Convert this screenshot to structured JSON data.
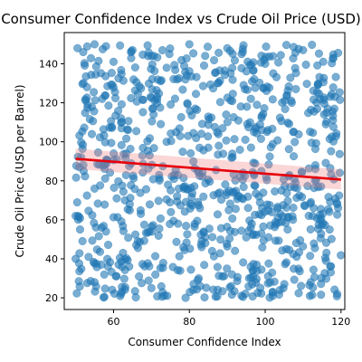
{
  "chart_data": {
    "type": "scatter",
    "title": "Consumer Confidence Index vs Crude Oil Price (USD)",
    "xlabel": "Consumer Confidence Index",
    "ylabel": "Crude Oil Price (USD per Barrel)",
    "xlim": [
      47,
      121
    ],
    "ylim": [
      14,
      156
    ],
    "xticks": [
      60,
      80,
      100,
      120
    ],
    "yticks": [
      20,
      40,
      60,
      80,
      100,
      120,
      140
    ],
    "grid": false,
    "point_color": "#1f77b4",
    "regression": {
      "color": "#e8000b",
      "band_color": "#f08080",
      "x": [
        50,
        120
      ],
      "y": [
        91.3,
        80.6
      ],
      "band_lower": [
        86.0,
        75.5
      ],
      "band_upper": [
        96.5,
        85.8
      ]
    },
    "points_seed": 12345,
    "points_count": 900,
    "points_x_range": [
      50,
      120
    ],
    "points_y_range": [
      20,
      150
    ],
    "sample_points": [
      {
        "x": 50.5,
        "y": 148
      },
      {
        "x": 52,
        "y": 146
      },
      {
        "x": 55,
        "y": 150
      },
      {
        "x": 58,
        "y": 149
      },
      {
        "x": 60,
        "y": 141
      },
      {
        "x": 65,
        "y": 147
      },
      {
        "x": 70,
        "y": 144
      },
      {
        "x": 80,
        "y": 150
      },
      {
        "x": 90,
        "y": 148
      },
      {
        "x": 100,
        "y": 140
      },
      {
        "x": 110,
        "y": 147
      },
      {
        "x": 118,
        "y": 143
      },
      {
        "x": 53,
        "y": 128
      },
      {
        "x": 57,
        "y": 122
      },
      {
        "x": 62,
        "y": 112
      },
      {
        "x": 74,
        "y": 100
      },
      {
        "x": 85,
        "y": 97
      },
      {
        "x": 96,
        "y": 110
      },
      {
        "x": 107,
        "y": 120
      },
      {
        "x": 116,
        "y": 109
      },
      {
        "x": 51,
        "y": 87
      },
      {
        "x": 55,
        "y": 76
      },
      {
        "x": 63,
        "y": 70
      },
      {
        "x": 72,
        "y": 83
      },
      {
        "x": 88,
        "y": 74
      },
      {
        "x": 99,
        "y": 85
      },
      {
        "x": 108,
        "y": 79
      },
      {
        "x": 119,
        "y": 68
      },
      {
        "x": 50,
        "y": 62
      },
      {
        "x": 58,
        "y": 54
      },
      {
        "x": 66,
        "y": 47
      },
      {
        "x": 77,
        "y": 58
      },
      {
        "x": 86,
        "y": 44
      },
      {
        "x": 95,
        "y": 51
      },
      {
        "x": 104,
        "y": 63
      },
      {
        "x": 117,
        "y": 55
      },
      {
        "x": 50,
        "y": 40
      },
      {
        "x": 55,
        "y": 28
      },
      {
        "x": 62,
        "y": 22
      },
      {
        "x": 70,
        "y": 25
      },
      {
        "x": 79,
        "y": 20
      },
      {
        "x": 91,
        "y": 26
      },
      {
        "x": 102,
        "y": 21
      },
      {
        "x": 112,
        "y": 28
      },
      {
        "x": 119,
        "y": 22
      }
    ]
  }
}
